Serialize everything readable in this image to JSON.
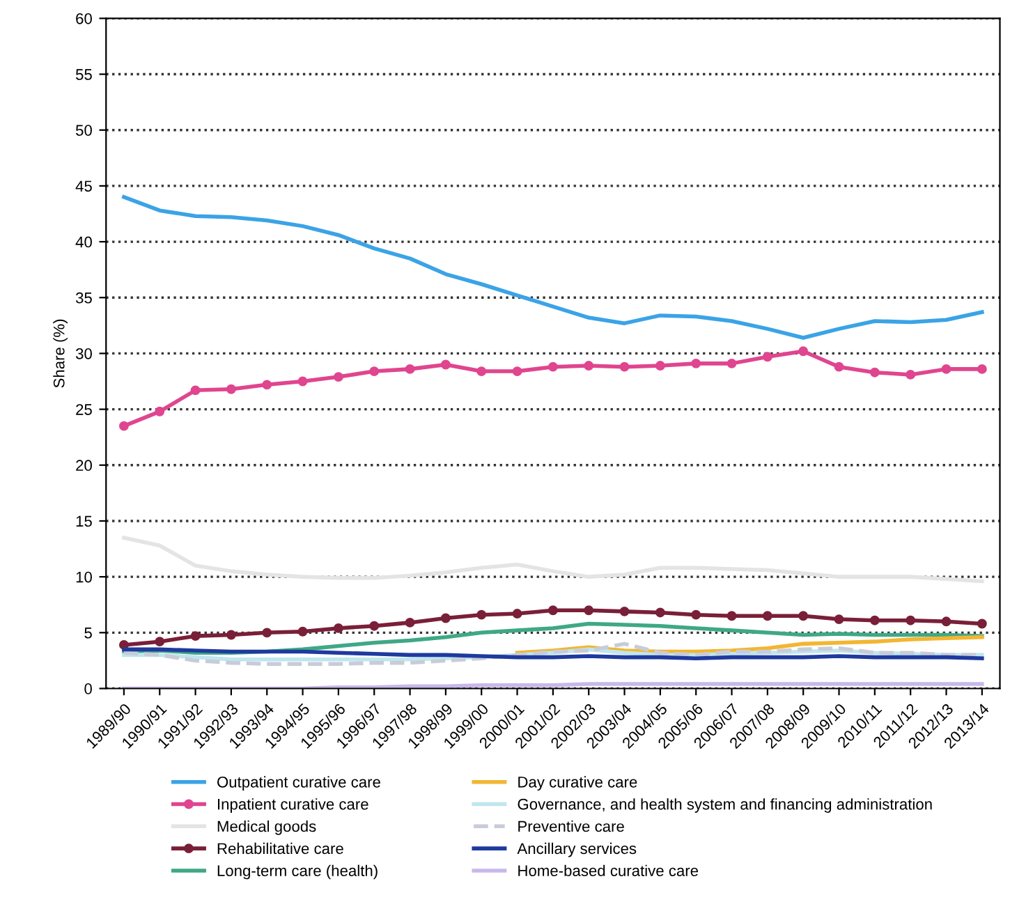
{
  "chart_data": {
    "type": "line",
    "ylabel": "Share (%)",
    "categories": [
      "1989/90",
      "1990/91",
      "1991/92",
      "1992/93",
      "1993/94",
      "1994/95",
      "1995/96",
      "1996/97",
      "1997/98",
      "1998/99",
      "1999/00",
      "2000/01",
      "2001/02",
      "2002/03",
      "2003/04",
      "2004/05",
      "2005/06",
      "2006/07",
      "2007/08",
      "2008/09",
      "2009/10",
      "2010/11",
      "2011/12",
      "2012/13",
      "2013/14"
    ],
    "ylim": [
      0,
      60
    ],
    "yticks": [
      0,
      5,
      10,
      15,
      20,
      25,
      30,
      35,
      40,
      45,
      50,
      55,
      60
    ],
    "grid": "y",
    "legend": "bottom",
    "series": [
      {
        "name": "Outpatient curative care",
        "color": "#3ba3e6",
        "values": [
          44,
          42.8,
          42.3,
          42.2,
          41.9,
          41.4,
          40.6,
          39.4,
          38.5,
          37.1,
          36.2,
          35.2,
          34.2,
          33.2,
          32.7,
          33.4,
          33.3,
          32.9,
          32.2,
          31.4,
          32.2,
          32.9,
          32.8,
          33.0,
          33.7
        ]
      },
      {
        "name": "Inpatient curative care",
        "color": "#e0458f",
        "marker": "circle",
        "values": [
          23.5,
          24.8,
          26.7,
          26.8,
          27.2,
          27.5,
          27.9,
          28.4,
          28.6,
          29.0,
          28.4,
          28.4,
          28.8,
          28.9,
          28.8,
          28.9,
          29.1,
          29.1,
          29.7,
          30.2,
          28.8,
          28.3,
          28.1,
          28.6,
          28.6
        ]
      },
      {
        "name": "Medical goods",
        "color": "#e4e4e4",
        "values": [
          13.5,
          12.8,
          11.0,
          10.5,
          10.2,
          10.0,
          9.9,
          9.9,
          10.1,
          10.4,
          10.8,
          11.1,
          10.5,
          10.0,
          10.2,
          10.8,
          10.8,
          10.7,
          10.6,
          10.3,
          10.0,
          10.0,
          10.0,
          9.8,
          9.6
        ]
      },
      {
        "name": "Rehabilitative care",
        "color": "#7a1f38",
        "marker": "circle",
        "values": [
          3.9,
          4.2,
          4.7,
          4.8,
          5.0,
          5.1,
          5.4,
          5.6,
          5.9,
          6.3,
          6.6,
          6.7,
          7.0,
          7.0,
          6.9,
          6.8,
          6.6,
          6.5,
          6.5,
          6.5,
          6.2,
          6.1,
          6.1,
          6.0,
          5.8
        ]
      },
      {
        "name": "Long-term care (health)",
        "color": "#3fa886",
        "values": [
          3.3,
          3.4,
          3.2,
          3.2,
          3.3,
          3.5,
          3.8,
          4.1,
          4.3,
          4.6,
          5.0,
          5.2,
          5.4,
          5.8,
          5.7,
          5.6,
          5.4,
          5.2,
          5.0,
          4.8,
          4.9,
          4.8,
          4.8,
          4.8,
          4.7
        ]
      },
      {
        "name": "Day curative care",
        "color": "#f2b632",
        "values": [
          null,
          null,
          null,
          null,
          null,
          null,
          null,
          null,
          null,
          null,
          null,
          3.2,
          3.4,
          3.7,
          3.4,
          3.3,
          3.3,
          3.4,
          3.6,
          4.0,
          4.1,
          4.2,
          4.4,
          4.5,
          4.6
        ]
      },
      {
        "name": "Governance, and health system and financing administration",
        "color": "#bfe6ee",
        "values": [
          3.0,
          3.0,
          2.8,
          2.6,
          2.6,
          2.6,
          2.6,
          2.6,
          2.6,
          2.7,
          2.8,
          3.0,
          3.2,
          3.5,
          3.2,
          3.0,
          3.0,
          3.1,
          3.2,
          3.3,
          3.4,
          3.2,
          3.1,
          3.0,
          3.0
        ]
      },
      {
        "name": "Preventive care",
        "color": "#c8ccd8",
        "line_style": "dashed",
        "values": [
          3.2,
          3.0,
          2.5,
          2.3,
          2.2,
          2.2,
          2.2,
          2.3,
          2.3,
          2.5,
          2.7,
          3.0,
          3.3,
          3.4,
          4.0,
          3.2,
          3.0,
          3.3,
          3.3,
          3.5,
          3.6,
          3.2,
          3.2,
          3.0,
          3.0
        ]
      },
      {
        "name": "Ancillary services",
        "color": "#1f3a9e",
        "values": [
          3.5,
          3.5,
          3.4,
          3.3,
          3.3,
          3.3,
          3.2,
          3.1,
          3.0,
          3.0,
          2.9,
          2.8,
          2.8,
          2.9,
          2.8,
          2.8,
          2.7,
          2.8,
          2.8,
          2.8,
          2.9,
          2.8,
          2.8,
          2.8,
          2.7
        ]
      },
      {
        "name": "Home-based curative care",
        "color": "#c8b8ea",
        "values": [
          0.0,
          0.0,
          0.0,
          0.0,
          0.0,
          0.0,
          0.1,
          0.1,
          0.2,
          0.2,
          0.3,
          0.3,
          0.3,
          0.4,
          0.4,
          0.4,
          0.4,
          0.4,
          0.4,
          0.4,
          0.4,
          0.4,
          0.4,
          0.4,
          0.4
        ]
      }
    ]
  }
}
